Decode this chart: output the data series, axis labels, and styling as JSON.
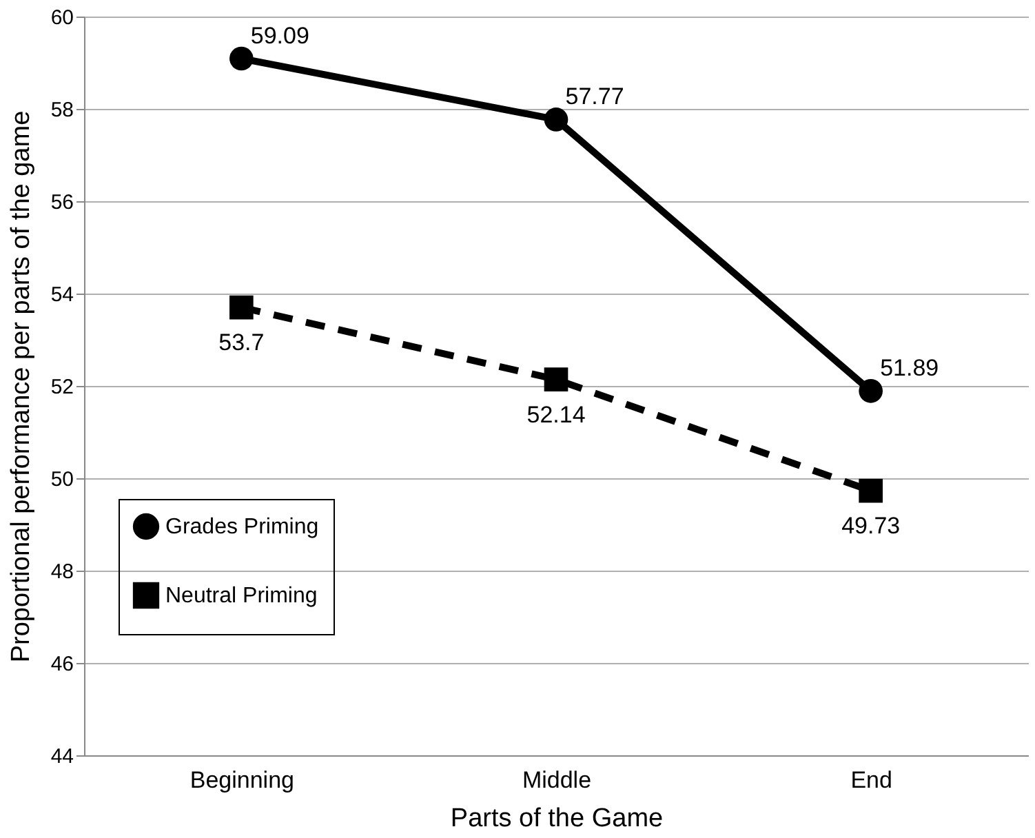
{
  "chart_data": {
    "type": "line",
    "xlabel": "Parts of the Game",
    "ylabel": "Proportional performance per parts of the game",
    "categories": [
      "Beginning",
      "Middle",
      "End"
    ],
    "series": [
      {
        "name": "Grades Priming",
        "color": "#000000",
        "values": [
          59.09,
          57.77,
          51.89
        ],
        "marker": "circle",
        "line_style": "solid"
      },
      {
        "name": "Neutral Priming",
        "color": "#000000",
        "values": [
          53.7,
          52.14,
          49.73
        ],
        "marker": "square",
        "line_style": "dashed"
      }
    ],
    "ylim": [
      44,
      60
    ],
    "yticks": [
      44,
      46,
      48,
      50,
      52,
      54,
      56,
      58,
      60
    ],
    "grid": "y",
    "legend": "bottom left",
    "data_labels": true
  }
}
